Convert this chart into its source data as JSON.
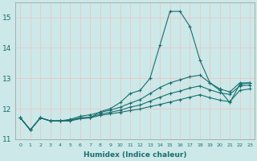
{
  "xlabel": "Humidex (Indice chaleur)",
  "bg_color": "#cce8e8",
  "grid_color": "#e8c8c8",
  "line_color": "#1a6e6e",
  "x_values": [
    0,
    1,
    2,
    3,
    4,
    5,
    6,
    7,
    8,
    9,
    10,
    11,
    12,
    13,
    14,
    15,
    16,
    17,
    18,
    19,
    20,
    21,
    22,
    23
  ],
  "line1_y": [
    11.7,
    11.3,
    11.7,
    11.6,
    11.6,
    11.6,
    11.7,
    11.7,
    11.9,
    12.0,
    12.2,
    12.5,
    12.6,
    13.0,
    14.1,
    15.2,
    15.2,
    14.7,
    13.6,
    12.85,
    12.6,
    12.2,
    12.8,
    12.85
  ],
  "line2_y": [
    11.7,
    11.3,
    11.7,
    11.6,
    11.6,
    11.65,
    11.75,
    11.8,
    11.88,
    11.95,
    12.05,
    12.18,
    12.3,
    12.5,
    12.7,
    12.85,
    12.95,
    13.05,
    13.1,
    12.85,
    12.65,
    12.55,
    12.85,
    12.85
  ],
  "line3_y": [
    11.7,
    11.3,
    11.7,
    11.6,
    11.6,
    11.62,
    11.7,
    11.72,
    11.82,
    11.88,
    11.95,
    12.05,
    12.12,
    12.25,
    12.38,
    12.5,
    12.58,
    12.68,
    12.75,
    12.62,
    12.52,
    12.47,
    12.75,
    12.78
  ],
  "line4_y": [
    11.7,
    11.3,
    11.7,
    11.6,
    11.6,
    11.6,
    11.67,
    11.7,
    11.78,
    11.83,
    11.88,
    11.94,
    11.99,
    12.07,
    12.14,
    12.22,
    12.3,
    12.38,
    12.46,
    12.36,
    12.28,
    12.23,
    12.6,
    12.65
  ],
  "ylim": [
    11.0,
    15.5
  ],
  "yticks": [
    11,
    12,
    13,
    14,
    15
  ],
  "xticks": [
    0,
    1,
    2,
    3,
    4,
    5,
    6,
    7,
    8,
    9,
    10,
    11,
    12,
    13,
    14,
    15,
    16,
    17,
    18,
    19,
    20,
    21,
    22,
    23
  ]
}
